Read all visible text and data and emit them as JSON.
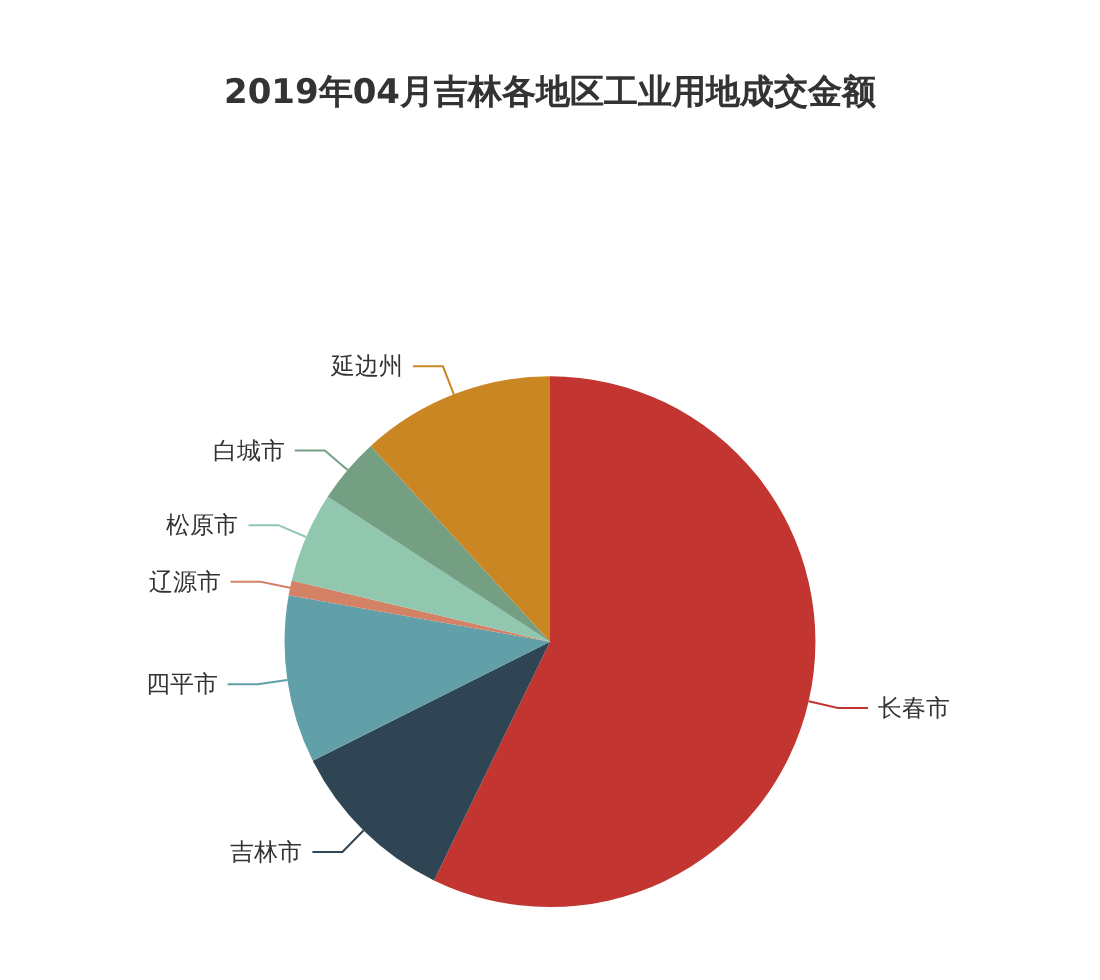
{
  "chart_data": {
    "type": "pie",
    "title": "2019年04月吉林各地区工业用地成交金额",
    "categories": [
      "长春市",
      "吉林市",
      "四平市",
      "辽源市",
      "松原市",
      "白城市",
      "延边州"
    ],
    "values": [
      57.2,
      10.4,
      10.2,
      0.9,
      5.5,
      4.0,
      11.8
    ],
    "colors": [
      "#c23531",
      "#2f4554",
      "#61a0a8",
      "#d48265",
      "#91c7ae",
      "#749f83",
      "#ca8622"
    ],
    "legend": false
  }
}
